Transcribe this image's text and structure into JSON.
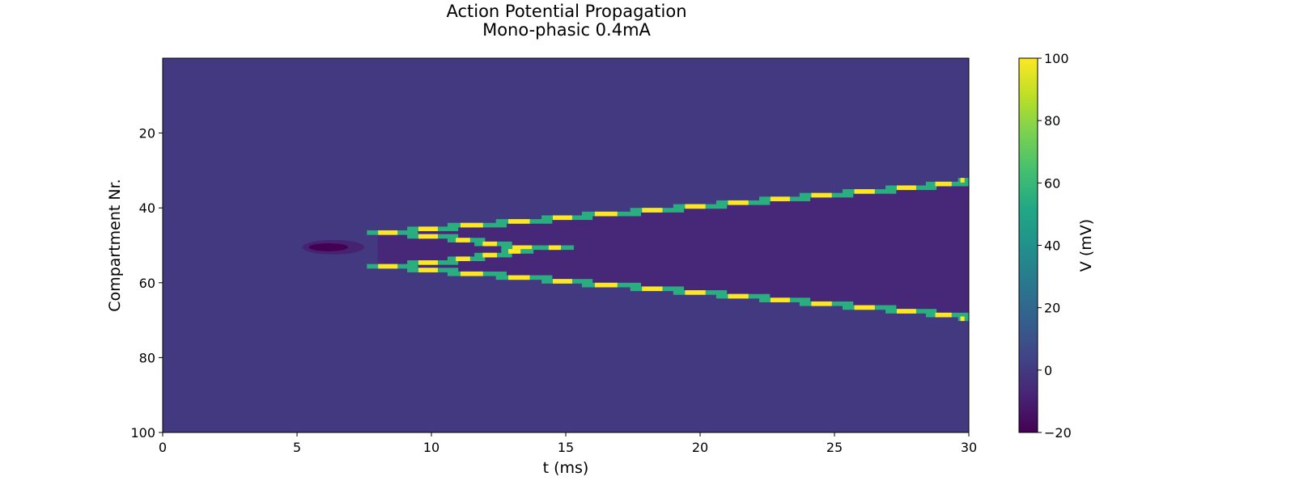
{
  "chart_data": {
    "type": "heatmap",
    "title_lines": [
      "Action Potential Propagation",
      "Mono-phasic 0.4mA"
    ],
    "xlabel": "t (ms)",
    "ylabel": "Compartment Nr.",
    "xlim": [
      0,
      30
    ],
    "ylim": [
      100,
      0
    ],
    "x_ticks": [
      0,
      5,
      10,
      15,
      20,
      25,
      30
    ],
    "y_ticks": [
      20,
      40,
      60,
      80,
      100
    ],
    "colormap": "viridis",
    "colorbar": {
      "label": "V (mV)",
      "range": [
        -20,
        100
      ],
      "ticks": [
        100,
        80,
        60,
        40,
        20,
        0,
        -20
      ],
      "tick_labels": [
        "100",
        "80",
        "60",
        "40",
        "20",
        "0",
        "−20"
      ]
    },
    "resting_potential_mV": 0,
    "stimulus": {
      "compartment": 50,
      "hyperpolarization_window_ms": [
        5.2,
        7.5
      ],
      "min_potential_mV": -20
    },
    "wavefronts": [
      {
        "name": "upward",
        "points": [
          {
            "t": 8.0,
            "compartment": 46
          },
          {
            "t": 9.5,
            "compartment": 45
          },
          {
            "t": 11.0,
            "compartment": 44
          },
          {
            "t": 12.8,
            "compartment": 43
          },
          {
            "t": 14.5,
            "compartment": 42
          },
          {
            "t": 16.0,
            "compartment": 41
          },
          {
            "t": 17.8,
            "compartment": 40
          },
          {
            "t": 19.4,
            "compartment": 39
          },
          {
            "t": 21.0,
            "compartment": 38
          },
          {
            "t": 22.6,
            "compartment": 37
          },
          {
            "t": 24.1,
            "compartment": 36
          },
          {
            "t": 25.7,
            "compartment": 35
          },
          {
            "t": 27.3,
            "compartment": 34
          },
          {
            "t": 28.8,
            "compartment": 33
          },
          {
            "t": 30.0,
            "compartment": 32
          }
        ],
        "peak_mV": 100
      },
      {
        "name": "downward",
        "points": [
          {
            "t": 8.0,
            "compartment": 55
          },
          {
            "t": 9.5,
            "compartment": 56
          },
          {
            "t": 11.0,
            "compartment": 57
          },
          {
            "t": 12.8,
            "compartment": 58
          },
          {
            "t": 14.5,
            "compartment": 59
          },
          {
            "t": 16.0,
            "compartment": 60
          },
          {
            "t": 17.8,
            "compartment": 61
          },
          {
            "t": 19.4,
            "compartment": 62
          },
          {
            "t": 21.0,
            "compartment": 63
          },
          {
            "t": 22.6,
            "compartment": 64
          },
          {
            "t": 24.1,
            "compartment": 65
          },
          {
            "t": 25.7,
            "compartment": 66
          },
          {
            "t": 27.3,
            "compartment": 67
          },
          {
            "t": 28.8,
            "compartment": 68
          },
          {
            "t": 30.0,
            "compartment": 69
          }
        ],
        "peak_mV": 100
      },
      {
        "name": "inner-upward",
        "points": [
          {
            "t": 9.5,
            "compartment": 47
          },
          {
            "t": 11.0,
            "compartment": 48
          },
          {
            "t": 12.0,
            "compartment": 49
          },
          {
            "t": 13.0,
            "compartment": 50
          },
          {
            "t": 14.5,
            "compartment": 50
          }
        ],
        "peak_mV": 100
      },
      {
        "name": "inner-downward",
        "points": [
          {
            "t": 9.5,
            "compartment": 54
          },
          {
            "t": 11.0,
            "compartment": 53
          },
          {
            "t": 12.0,
            "compartment": 52
          },
          {
            "t": 13.0,
            "compartment": 51
          }
        ],
        "peak_mV": 100
      }
    ],
    "after_hyperpolarization_mV": -8
  }
}
